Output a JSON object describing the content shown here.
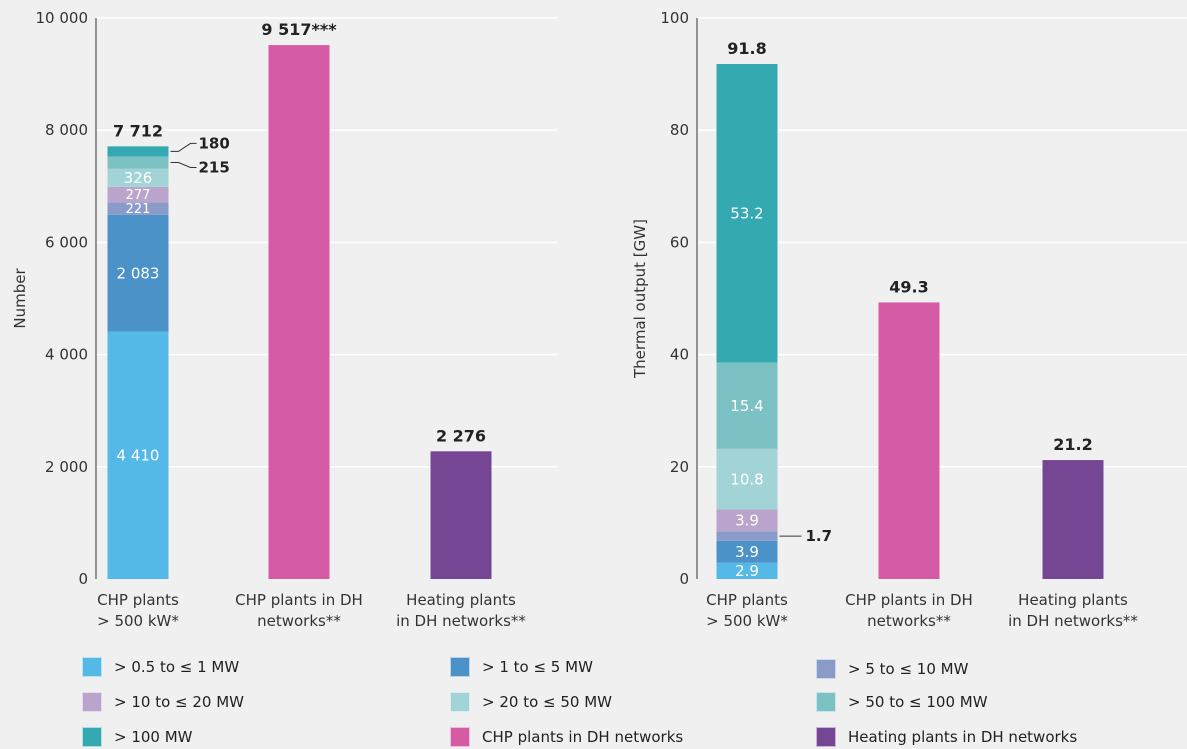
{
  "colors": {
    "gt_0_5_to_1": "#55b9e8",
    "gt_1_to_5": "#4a92c8",
    "gt_5_to_10": "#8b9bc9",
    "gt_10_to_20": "#bba4cc",
    "gt_20_to_50": "#a2d4d7",
    "gt_50_to_100": "#7cc1c4",
    "gt_100": "#35a9b1",
    "chp_dh": "#d55ba4",
    "heating_dh": "#754693",
    "grid": "#ffffff",
    "axis_text": "#333333"
  },
  "chart_data": [
    {
      "type": "bar",
      "stacked": true,
      "ylabel": "Number",
      "ylim": [
        0,
        10000
      ],
      "yticks": [
        0,
        2000,
        4000,
        6000,
        8000,
        10000
      ],
      "ytick_labels": [
        "0",
        "2 000",
        "4 000",
        "6 000",
        "8 000",
        "10 000"
      ],
      "grid": true,
      "categories": [
        [
          "CHP plants",
          "> 500 kW*"
        ],
        [
          "CHP plants in DH",
          "networks**"
        ],
        [
          "Heating plants",
          "in DH networks**"
        ]
      ],
      "series": [
        {
          "key": "gt_0_5_to_1",
          "values": [
            4410,
            null,
            null
          ],
          "labels": [
            "4 410",
            "",
            ""
          ]
        },
        {
          "key": "gt_1_to_5",
          "values": [
            2083,
            null,
            null
          ],
          "labels": [
            "2 083",
            "",
            ""
          ]
        },
        {
          "key": "gt_5_to_10",
          "values": [
            221,
            null,
            null
          ],
          "labels": [
            "221",
            "",
            ""
          ]
        },
        {
          "key": "gt_10_to_20",
          "values": [
            277,
            null,
            null
          ],
          "labels": [
            "277",
            "",
            ""
          ]
        },
        {
          "key": "gt_20_to_50",
          "values": [
            326,
            null,
            null
          ],
          "labels": [
            "326",
            "",
            ""
          ]
        },
        {
          "key": "gt_50_to_100",
          "values": [
            215,
            null,
            null
          ],
          "labels": [
            "215",
            "",
            ""
          ],
          "callout": true
        },
        {
          "key": "gt_100",
          "values": [
            180,
            null,
            null
          ],
          "labels": [
            "180",
            "",
            ""
          ],
          "callout": true
        },
        {
          "key": "chp_dh",
          "values": [
            null,
            9517,
            null
          ],
          "labels": [
            "",
            "",
            ""
          ]
        },
        {
          "key": "heating_dh",
          "values": [
            null,
            null,
            2276
          ],
          "labels": [
            "",
            "",
            ""
          ]
        }
      ],
      "totals": [
        "7 712",
        "9 517***",
        "2 276"
      ]
    },
    {
      "type": "bar",
      "stacked": true,
      "ylabel": "Thermal output [GW]",
      "ylim": [
        0,
        100
      ],
      "yticks": [
        0,
        20,
        40,
        60,
        80,
        100
      ],
      "ytick_labels": [
        "0",
        "20",
        "40",
        "60",
        "80",
        "100"
      ],
      "grid": true,
      "categories": [
        [
          "CHP plants",
          "> 500 kW*"
        ],
        [
          "CHP plants in DH",
          "networks**"
        ],
        [
          "Heating plants",
          "in DH networks**"
        ]
      ],
      "series": [
        {
          "key": "gt_0_5_to_1",
          "values": [
            2.9,
            null,
            null
          ],
          "labels": [
            "2.9",
            "",
            ""
          ]
        },
        {
          "key": "gt_1_to_5",
          "values": [
            3.9,
            null,
            null
          ],
          "labels": [
            "3.9",
            "",
            ""
          ]
        },
        {
          "key": "gt_5_to_10",
          "values": [
            1.7,
            null,
            null
          ],
          "labels": [
            "1.7",
            "",
            ""
          ],
          "callout": true
        },
        {
          "key": "gt_10_to_20",
          "values": [
            3.9,
            null,
            null
          ],
          "labels": [
            "3.9",
            "",
            ""
          ]
        },
        {
          "key": "gt_20_to_50",
          "values": [
            10.8,
            null,
            null
          ],
          "labels": [
            "10.8",
            "",
            ""
          ]
        },
        {
          "key": "gt_50_to_100",
          "values": [
            15.4,
            null,
            null
          ],
          "labels": [
            "15.4",
            "",
            ""
          ]
        },
        {
          "key": "gt_100",
          "values": [
            53.2,
            null,
            null
          ],
          "labels": [
            "53.2",
            "",
            ""
          ]
        },
        {
          "key": "chp_dh",
          "values": [
            null,
            49.3,
            null
          ],
          "labels": [
            "",
            "",
            ""
          ]
        },
        {
          "key": "heating_dh",
          "values": [
            null,
            null,
            21.2
          ],
          "labels": [
            "",
            "",
            ""
          ]
        }
      ],
      "totals": [
        "91.8",
        "49.3",
        "21.2"
      ]
    }
  ],
  "legend": {
    "items": [
      {
        "key": "gt_0_5_to_1",
        "label": "> 0.5 to ≤ 1 MW"
      },
      {
        "key": "gt_1_to_5",
        "label": "> 1 to ≤ 5 MW"
      },
      {
        "key": "gt_5_to_10",
        "label": "> 5 to ≤ 10 MW"
      },
      {
        "key": "gt_10_to_20",
        "label": "> 10 to ≤ 20 MW"
      },
      {
        "key": "gt_20_to_50",
        "label": "> 20 to ≤ 50 MW"
      },
      {
        "key": "gt_50_to_100",
        "label": "> 50 to ≤ 100 MW"
      },
      {
        "key": "gt_100",
        "label": "> 100 MW"
      },
      {
        "key": "chp_dh",
        "label": "CHP plants in DH networks"
      },
      {
        "key": "heating_dh",
        "label": "Heating plants in DH networks"
      }
    ]
  }
}
